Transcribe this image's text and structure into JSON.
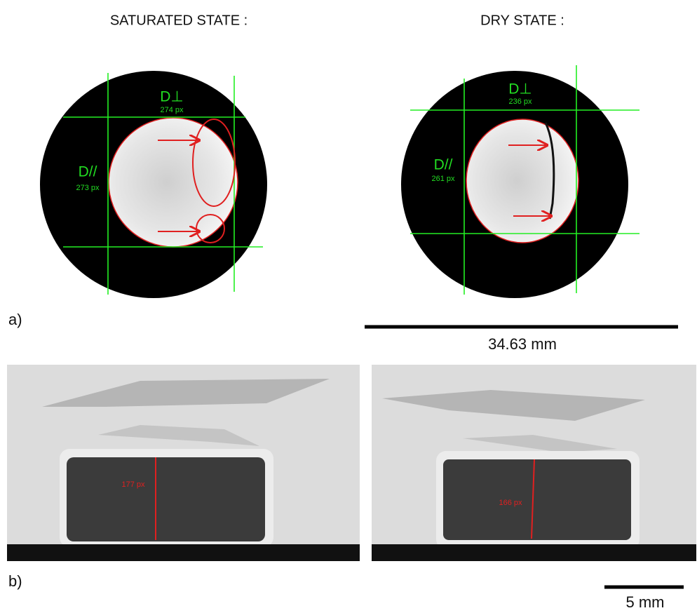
{
  "panel_a": {
    "label": "a)",
    "saturated": {
      "title": "SATURATED STATE :",
      "d_perp": "D⊥",
      "d_perp_value": "274 px",
      "d_par": "D//",
      "d_par_value": "273 px"
    },
    "dry": {
      "title": "DRY STATE :",
      "d_perp": "D⊥",
      "d_perp_value": "236 px",
      "d_par": "D//",
      "d_par_value": "261 px"
    },
    "scale_bar": "34.63 mm"
  },
  "panel_b": {
    "label": "b)",
    "saturated": {
      "height": "177 px"
    },
    "dry": {
      "height": "166 px"
    },
    "scale_bar": "5 mm"
  }
}
